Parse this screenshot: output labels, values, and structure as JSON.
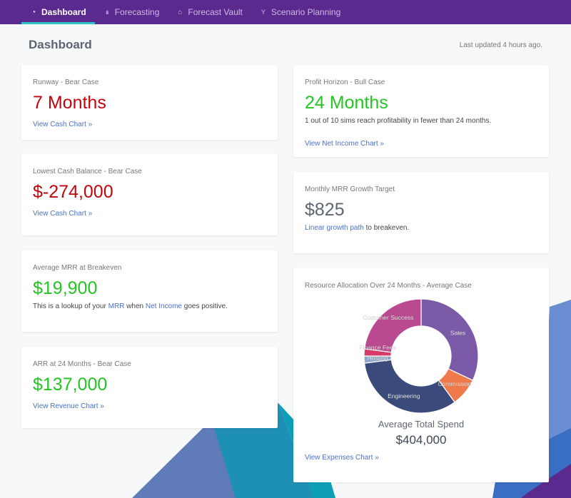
{
  "nav": {
    "items": [
      {
        "label": "Dashboard",
        "icon": "gauge-icon",
        "glyph": "◔"
      },
      {
        "label": "Forecasting",
        "icon": "bar-chart-icon",
        "glyph": "ılı"
      },
      {
        "label": "Forecast Vault",
        "icon": "bank-icon",
        "glyph": "⌂"
      },
      {
        "label": "Scenario Planning",
        "icon": "branch-icon",
        "glyph": "Y"
      }
    ]
  },
  "header": {
    "title": "Dashboard",
    "last_updated": "Last updated 4 hours ago."
  },
  "cards": {
    "runway": {
      "label": "Runway - Bear Case",
      "value": "7 Months",
      "link": "View Cash Chart »"
    },
    "lowest_cash": {
      "label": "Lowest Cash Balance - Bear Case",
      "value": "$-274,000",
      "link": "View Cash Chart »"
    },
    "avg_mrr": {
      "label": "Average MRR at Breakeven",
      "value": "$19,900",
      "text_pre": "This is a lookup of your ",
      "link_mrr": "MRR",
      "text_mid": " when ",
      "link_net": "Net Income",
      "text_post": " goes positive."
    },
    "arr": {
      "label": "ARR at 24 Months - Bear Case",
      "value": "$137,000",
      "link": "View Revenue Chart »"
    },
    "profit": {
      "label": "Profit Horizon - Bull Case",
      "value": "24 Months",
      "text": "1 out of 10 sims reach profitability in fewer than 24 months.",
      "link": "View Net Income Chart »"
    },
    "mrr_target": {
      "label": "Monthly MRR Growth Target",
      "value": "$825",
      "link": "Linear growth path",
      "text_post": " to breakeven."
    },
    "resource": {
      "label": "Resource Allocation Over 24 Months - Average Case",
      "avg_label": "Average Total Spend",
      "avg_value": "$404,000",
      "link": "View Expenses Chart »"
    }
  },
  "chart_data": {
    "type": "pie",
    "categories": [
      "Sales",
      "Commission",
      "Engineering",
      "Hosting",
      "Finance Fees",
      "Customer Success"
    ],
    "values": [
      32,
      8,
      33,
      2,
      2,
      23
    ],
    "colors": [
      "#7a5aa6",
      "#f07a4c",
      "#3a4a7a",
      "#8fa6c8",
      "#d63a6a",
      "#b94a90"
    ]
  }
}
